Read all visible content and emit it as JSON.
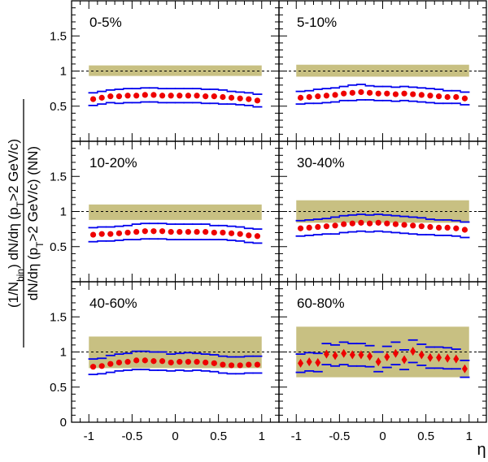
{
  "chart_data": {
    "type": "scatter",
    "ylabel_top": "(1/N_bin) dN/dη (p_T>2 GeV/c)",
    "ylabel_bottom": "dN/dη (p_T>2 GeV/c) (NN)",
    "ylabel_parts": {
      "num_a": "(1/N",
      "num_sub": "bin",
      "num_b": ") dN/dη (p",
      "num_sub2": "T",
      "num_c": ">2 GeV/c)",
      "den_a": "dN/dη (p",
      "den_sub": "T",
      "den_b": ">2 GeV/c) (NN)"
    },
    "xlabel": "η",
    "xlim": [
      -1.2,
      1.2
    ],
    "ylim": [
      0,
      2
    ],
    "x_ticks": [
      -1,
      -0.5,
      0,
      0.5,
      1
    ],
    "x_tick_labels": [
      "-1",
      "-0.5",
      "0",
      "0.5",
      "1"
    ],
    "y_ticks": [
      0.5,
      1,
      1.5
    ],
    "y_tick_labels": [
      "0.5",
      "1",
      "1.5"
    ],
    "y_zero_label": "0",
    "reference_line": 1,
    "band_color": "#c8c082",
    "marker_color": "#ee0000",
    "error_color": "#0000ee",
    "panels": [
      {
        "label": "0-5%",
        "band": [
          0.93,
          1.08
        ],
        "x": [
          -0.95,
          -0.85,
          -0.75,
          -0.65,
          -0.55,
          -0.45,
          -0.35,
          -0.25,
          -0.15,
          -0.05,
          0.05,
          0.15,
          0.25,
          0.35,
          0.45,
          0.55,
          0.65,
          0.75,
          0.85,
          0.95
        ],
        "y": [
          0.6,
          0.62,
          0.64,
          0.64,
          0.65,
          0.65,
          0.66,
          0.66,
          0.65,
          0.65,
          0.65,
          0.65,
          0.65,
          0.64,
          0.64,
          0.63,
          0.62,
          0.61,
          0.6,
          0.58
        ],
        "sys": [
          0.09,
          0.09,
          0.09,
          0.1,
          0.1,
          0.1,
          0.1,
          0.1,
          0.1,
          0.1,
          0.1,
          0.1,
          0.1,
          0.1,
          0.1,
          0.1,
          0.09,
          0.09,
          0.09,
          0.09
        ],
        "marker": "circle"
      },
      {
        "label": "5-10%",
        "band": [
          0.92,
          1.09
        ],
        "x": [
          -0.95,
          -0.85,
          -0.75,
          -0.65,
          -0.55,
          -0.45,
          -0.35,
          -0.25,
          -0.15,
          -0.05,
          0.05,
          0.15,
          0.25,
          0.35,
          0.45,
          0.55,
          0.65,
          0.75,
          0.85,
          0.95
        ],
        "y": [
          0.62,
          0.63,
          0.64,
          0.65,
          0.66,
          0.68,
          0.69,
          0.7,
          0.69,
          0.68,
          0.68,
          0.67,
          0.68,
          0.67,
          0.66,
          0.65,
          0.64,
          0.63,
          0.63,
          0.61
        ],
        "sys": [
          0.09,
          0.09,
          0.1,
          0.1,
          0.1,
          0.1,
          0.11,
          0.11,
          0.1,
          0.1,
          0.1,
          0.1,
          0.1,
          0.1,
          0.1,
          0.1,
          0.1,
          0.09,
          0.09,
          0.09
        ],
        "marker": "circle"
      },
      {
        "label": "10-20%",
        "band": [
          0.88,
          1.1
        ],
        "x": [
          -0.95,
          -0.85,
          -0.75,
          -0.65,
          -0.55,
          -0.45,
          -0.35,
          -0.25,
          -0.15,
          -0.05,
          0.05,
          0.15,
          0.25,
          0.35,
          0.45,
          0.55,
          0.65,
          0.75,
          0.85,
          0.95
        ],
        "y": [
          0.67,
          0.68,
          0.68,
          0.69,
          0.7,
          0.71,
          0.72,
          0.72,
          0.72,
          0.71,
          0.71,
          0.71,
          0.71,
          0.71,
          0.7,
          0.7,
          0.69,
          0.68,
          0.66,
          0.65
        ],
        "sys": [
          0.1,
          0.1,
          0.1,
          0.1,
          0.1,
          0.11,
          0.11,
          0.11,
          0.11,
          0.11,
          0.11,
          0.11,
          0.11,
          0.11,
          0.1,
          0.1,
          0.1,
          0.1,
          0.1,
          0.1
        ],
        "marker": "circle"
      },
      {
        "label": "30-40%",
        "band": [
          0.84,
          1.16
        ],
        "x": [
          -0.95,
          -0.85,
          -0.75,
          -0.65,
          -0.55,
          -0.45,
          -0.35,
          -0.25,
          -0.15,
          -0.05,
          0.05,
          0.15,
          0.25,
          0.35,
          0.45,
          0.55,
          0.65,
          0.75,
          0.85,
          0.95
        ],
        "y": [
          0.76,
          0.77,
          0.78,
          0.79,
          0.8,
          0.82,
          0.83,
          0.84,
          0.83,
          0.84,
          0.83,
          0.82,
          0.81,
          0.8,
          0.79,
          0.78,
          0.77,
          0.77,
          0.76,
          0.74
        ],
        "sys": [
          0.11,
          0.11,
          0.11,
          0.11,
          0.12,
          0.12,
          0.12,
          0.12,
          0.12,
          0.12,
          0.12,
          0.12,
          0.12,
          0.12,
          0.12,
          0.11,
          0.11,
          0.11,
          0.11,
          0.11
        ],
        "marker": "circle"
      },
      {
        "label": "40-60%",
        "band": [
          0.77,
          1.22
        ],
        "x": [
          -0.95,
          -0.85,
          -0.75,
          -0.65,
          -0.55,
          -0.45,
          -0.35,
          -0.25,
          -0.15,
          -0.05,
          0.05,
          0.15,
          0.25,
          0.35,
          0.45,
          0.55,
          0.65,
          0.75,
          0.85,
          0.95
        ],
        "y": [
          0.79,
          0.8,
          0.83,
          0.85,
          0.86,
          0.88,
          0.88,
          0.87,
          0.87,
          0.85,
          0.86,
          0.86,
          0.86,
          0.85,
          0.84,
          0.82,
          0.81,
          0.81,
          0.82,
          0.82
        ],
        "sys": [
          0.11,
          0.11,
          0.12,
          0.12,
          0.12,
          0.13,
          0.13,
          0.13,
          0.13,
          0.12,
          0.12,
          0.13,
          0.12,
          0.12,
          0.12,
          0.12,
          0.12,
          0.12,
          0.12,
          0.12
        ],
        "marker": "circle"
      },
      {
        "label": "60-80%",
        "band": [
          0.64,
          1.36
        ],
        "x": [
          -0.95,
          -0.85,
          -0.75,
          -0.65,
          -0.55,
          -0.45,
          -0.35,
          -0.25,
          -0.15,
          -0.05,
          0.05,
          0.15,
          0.25,
          0.35,
          0.45,
          0.55,
          0.65,
          0.75,
          0.85,
          0.95
        ],
        "y": [
          0.84,
          0.86,
          0.85,
          0.97,
          0.95,
          0.98,
          0.96,
          0.96,
          0.94,
          0.86,
          0.93,
          0.98,
          0.89,
          1.01,
          0.96,
          0.92,
          0.92,
          0.91,
          0.9,
          0.76
        ],
        "sys": [
          0.13,
          0.13,
          0.13,
          0.15,
          0.15,
          0.16,
          0.16,
          0.16,
          0.15,
          0.14,
          0.15,
          0.16,
          0.14,
          0.16,
          0.15,
          0.15,
          0.15,
          0.15,
          0.14,
          0.12
        ],
        "marker": "diamond"
      }
    ]
  }
}
